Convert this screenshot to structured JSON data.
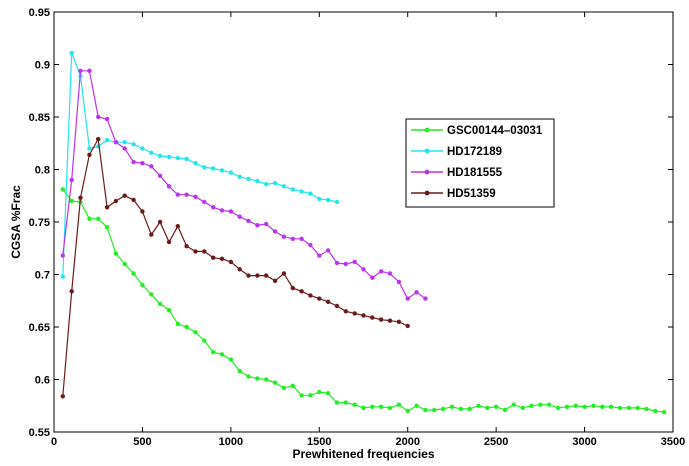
{
  "chart_data": {
    "type": "line",
    "xlabel": "Prewhitened frequencies",
    "ylabel": "CGSA %Frac",
    "xlim": [
      0,
      3500
    ],
    "ylim": [
      0.55,
      0.95
    ],
    "xticks": [
      0,
      500,
      1000,
      1500,
      2000,
      2500,
      3000,
      3500
    ],
    "yticks": [
      0.55,
      0.6,
      0.65,
      0.7,
      0.75,
      0.8,
      0.85,
      0.9,
      0.95
    ],
    "xtick_labels": [
      "0",
      "500",
      "1000",
      "1500",
      "2000",
      "2500",
      "3000",
      "3500"
    ],
    "ytick_labels": [
      "0.55",
      "0.6",
      "0.65",
      "0.7",
      "0.75",
      "0.8",
      "0.85",
      "0.9",
      "0.95"
    ],
    "grid": false,
    "legend_position": "upper-right",
    "series": [
      {
        "name": "GSC00144–03031",
        "color": "#22ee22",
        "x": [
          50,
          100,
          150,
          200,
          250,
          300,
          350,
          400,
          450,
          500,
          550,
          600,
          650,
          700,
          750,
          800,
          850,
          900,
          950,
          1000,
          1050,
          1100,
          1150,
          1200,
          1250,
          1300,
          1350,
          1400,
          1450,
          1500,
          1550,
          1600,
          1650,
          1700,
          1750,
          1800,
          1850,
          1900,
          1950,
          2000,
          2050,
          2100,
          2150,
          2200,
          2250,
          2300,
          2350,
          2400,
          2450,
          2500,
          2550,
          2600,
          2650,
          2700,
          2750,
          2800,
          2850,
          2900,
          2950,
          3000,
          3050,
          3100,
          3150,
          3200,
          3250,
          3300,
          3350,
          3400,
          3450
        ],
        "y": [
          0.781,
          0.77,
          0.769,
          0.753,
          0.753,
          0.745,
          0.72,
          0.71,
          0.701,
          0.69,
          0.681,
          0.672,
          0.666,
          0.653,
          0.65,
          0.645,
          0.637,
          0.626,
          0.624,
          0.619,
          0.608,
          0.603,
          0.601,
          0.6,
          0.597,
          0.592,
          0.594,
          0.585,
          0.585,
          0.588,
          0.587,
          0.578,
          0.578,
          0.576,
          0.573,
          0.574,
          0.574,
          0.573,
          0.576,
          0.57,
          0.575,
          0.571,
          0.571,
          0.572,
          0.574,
          0.572,
          0.572,
          0.575,
          0.573,
          0.574,
          0.571,
          0.576,
          0.573,
          0.575,
          0.576,
          0.576,
          0.573,
          0.574,
          0.575,
          0.574,
          0.575,
          0.574,
          0.574,
          0.573,
          0.573,
          0.573,
          0.572,
          0.57,
          0.569
        ]
      },
      {
        "name": "HD172189",
        "color": "#22e6ee",
        "x": [
          50,
          100,
          150,
          200,
          250,
          300,
          350,
          400,
          450,
          500,
          550,
          600,
          650,
          700,
          750,
          800,
          850,
          900,
          950,
          1000,
          1050,
          1100,
          1150,
          1200,
          1250,
          1300,
          1350,
          1400,
          1450,
          1500,
          1550,
          1600
        ],
        "y": [
          0.698,
          0.911,
          0.889,
          0.82,
          0.822,
          0.828,
          0.826,
          0.826,
          0.824,
          0.82,
          0.816,
          0.813,
          0.812,
          0.811,
          0.81,
          0.806,
          0.802,
          0.801,
          0.799,
          0.797,
          0.793,
          0.791,
          0.789,
          0.786,
          0.787,
          0.784,
          0.781,
          0.779,
          0.777,
          0.772,
          0.771,
          0.769
        ]
      },
      {
        "name": "HD181555",
        "color": "#bb33ee",
        "x": [
          50,
          100,
          150,
          200,
          250,
          300,
          350,
          400,
          450,
          500,
          550,
          600,
          650,
          700,
          750,
          800,
          850,
          900,
          950,
          1000,
          1050,
          1100,
          1150,
          1200,
          1250,
          1300,
          1350,
          1400,
          1450,
          1500,
          1550,
          1600,
          1650,
          1700,
          1750,
          1800,
          1850,
          1900,
          1950,
          2000,
          2050,
          2100
        ],
        "y": [
          0.718,
          0.79,
          0.894,
          0.894,
          0.85,
          0.848,
          0.826,
          0.82,
          0.807,
          0.806,
          0.803,
          0.794,
          0.784,
          0.776,
          0.776,
          0.774,
          0.769,
          0.764,
          0.761,
          0.76,
          0.755,
          0.751,
          0.747,
          0.748,
          0.741,
          0.736,
          0.734,
          0.734,
          0.728,
          0.718,
          0.723,
          0.711,
          0.71,
          0.712,
          0.705,
          0.697,
          0.703,
          0.701,
          0.693,
          0.677,
          0.683,
          0.677
        ]
      },
      {
        "name": "HD51359",
        "color": "#6b1a1a",
        "x": [
          50,
          100,
          150,
          200,
          250,
          300,
          350,
          400,
          450,
          500,
          550,
          600,
          650,
          700,
          750,
          800,
          850,
          900,
          950,
          1000,
          1050,
          1100,
          1150,
          1200,
          1250,
          1300,
          1350,
          1400,
          1450,
          1500,
          1550,
          1600,
          1650,
          1700,
          1750,
          1800,
          1850,
          1900,
          1950,
          2000
        ],
        "y": [
          0.584,
          0.684,
          0.773,
          0.814,
          0.829,
          0.764,
          0.77,
          0.775,
          0.771,
          0.76,
          0.738,
          0.75,
          0.731,
          0.746,
          0.727,
          0.722,
          0.722,
          0.716,
          0.715,
          0.712,
          0.705,
          0.699,
          0.699,
          0.699,
          0.694,
          0.701,
          0.687,
          0.684,
          0.68,
          0.677,
          0.674,
          0.67,
          0.665,
          0.663,
          0.661,
          0.659,
          0.657,
          0.656,
          0.655,
          0.651
        ]
      }
    ]
  }
}
